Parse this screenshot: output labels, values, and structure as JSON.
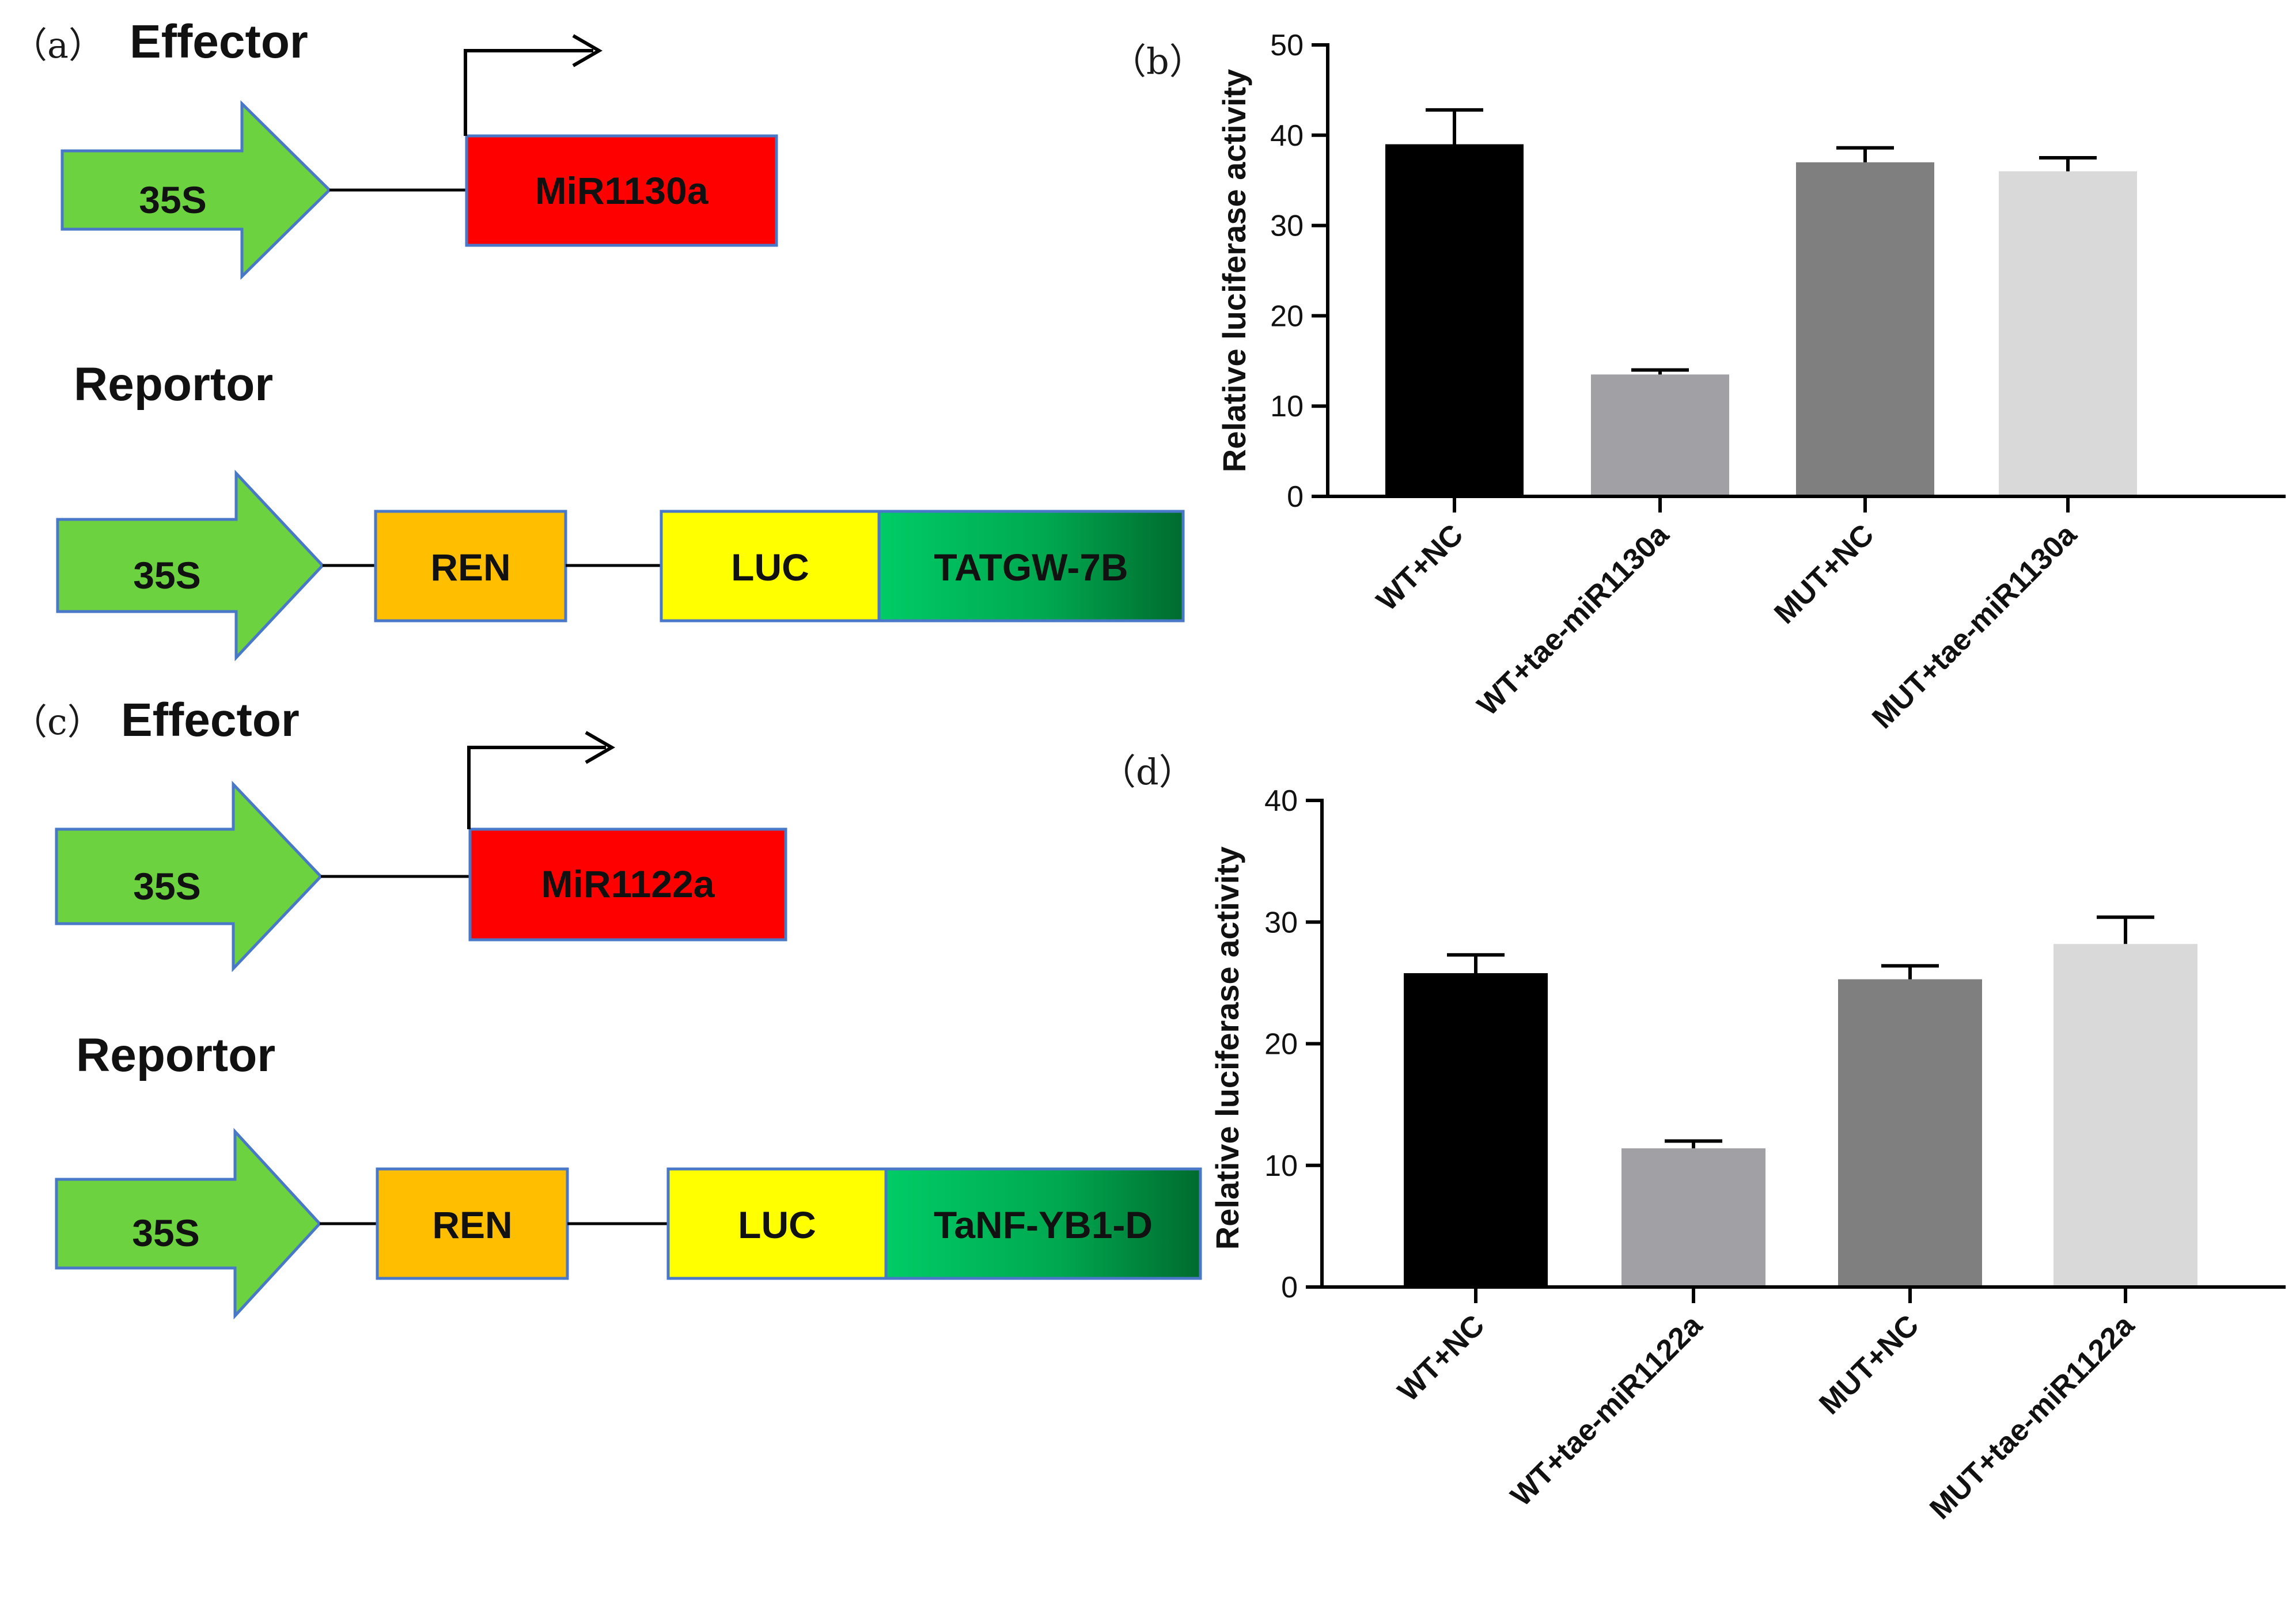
{
  "diagrams": [
    {
      "panel_label": "（a）",
      "effector": {
        "heading": "Effector",
        "promoter": "35S",
        "gene": "MiR1130a"
      },
      "reporter": {
        "heading": "Reportor",
        "promoter": "35S",
        "ren": "REN",
        "luc": "LUC",
        "target": "TATGW-7B"
      }
    },
    {
      "panel_label": "（c）",
      "effector": {
        "heading": "Effector",
        "promoter": "35S",
        "gene": "MiR1122a"
      },
      "reporter": {
        "heading": "Reportor",
        "promoter": "35S",
        "ren": "REN",
        "luc": "LUC",
        "target": "TaNF-YB1-D"
      }
    }
  ],
  "colors": {
    "arrow_fill": "#6CD23F",
    "arrow_stroke": "#4A78C8",
    "gene_fill": "#FF0000",
    "ren_fill": "#FFBF00",
    "luc_fill": "#FFFF00",
    "target_gradient": [
      "#00CC66",
      "#00A850",
      "#006B2E"
    ],
    "bar_fills": [
      "#000000",
      "#A0A0A5",
      "#7F7F7F",
      "#D9D9D9"
    ]
  },
  "chart_data": [
    {
      "panel_label": "（b）",
      "type": "bar",
      "ylabel": "Relative luciferase activity",
      "xlabel": "",
      "ylim": [
        0,
        50
      ],
      "yticks": [
        0,
        10,
        20,
        30,
        40,
        50
      ],
      "categories": [
        "WT+NC",
        "WT+tae-miR1130a",
        "MUT+NC",
        "MUT+tae-miR1130a"
      ],
      "values": [
        39,
        13.5,
        37,
        36
      ],
      "errors": [
        3.8,
        0.5,
        1.6,
        1.5
      ]
    },
    {
      "panel_label": "（d）",
      "type": "bar",
      "ylabel": "Relative luciferase activity",
      "xlabel": "",
      "ylim": [
        0,
        40
      ],
      "yticks": [
        0,
        10,
        20,
        30,
        40
      ],
      "categories": [
        "WT+NC",
        "WT+tae-miR1122a",
        "MUT+NC",
        "MUT+tae-miR1122a"
      ],
      "values": [
        25.8,
        11.4,
        25.3,
        28.2
      ],
      "errors": [
        1.5,
        0.6,
        1.1,
        2.2
      ]
    }
  ]
}
